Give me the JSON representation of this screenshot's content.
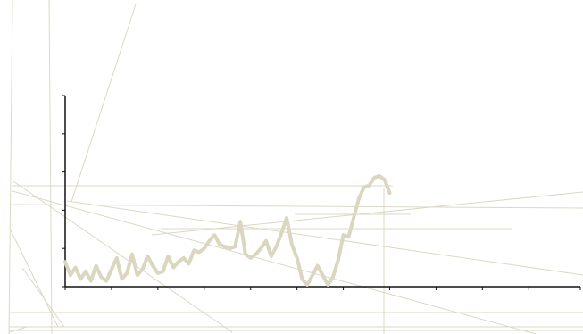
{
  "palette": {
    "background": "#ffffff",
    "series": "#dbd6bf",
    "axis": "#111111",
    "overlay": "#dcd8c6"
  },
  "chart_data": {
    "type": "line",
    "title": "",
    "xlabel": "",
    "ylabel": "",
    "xlim": [
      0,
      100
    ],
    "ylim": [
      0,
      5
    ],
    "x_ticks": [
      0,
      9,
      18,
      27,
      36,
      45,
      54,
      63,
      72,
      81,
      90,
      100
    ],
    "y_ticks": [
      0,
      1,
      2,
      3,
      4,
      5
    ],
    "grid": false,
    "legend": "none",
    "series": [
      {
        "x": [
          0,
          1,
          2,
          3,
          4,
          5,
          6,
          7,
          8,
          9,
          10,
          11,
          12,
          13,
          14,
          15,
          16,
          17,
          18,
          19,
          20,
          21,
          22,
          23,
          24,
          25,
          26,
          27,
          28,
          29,
          30,
          31,
          32,
          33,
          34,
          35,
          36,
          37,
          38,
          39,
          40,
          41,
          42,
          43,
          44,
          45,
          46,
          47,
          48,
          49,
          50,
          51,
          52,
          53,
          54,
          55,
          56,
          57,
          58,
          59,
          60,
          61,
          62,
          63
        ],
        "values": [
          0.65,
          0.3,
          0.5,
          0.2,
          0.4,
          0.15,
          0.55,
          0.25,
          0.15,
          0.45,
          0.75,
          0.2,
          0.35,
          0.85,
          0.3,
          0.45,
          0.8,
          0.55,
          0.35,
          0.4,
          0.8,
          0.5,
          0.65,
          0.75,
          0.6,
          0.95,
          0.9,
          1.0,
          1.2,
          1.35,
          1.1,
          1.05,
          1.0,
          1.05,
          1.7,
          0.85,
          0.75,
          0.85,
          1.0,
          1.2,
          0.8,
          1.05,
          1.4,
          1.8,
          1.1,
          0.75,
          0.2,
          0.05,
          0.3,
          0.55,
          0.3,
          0.05,
          0.25,
          0.7,
          1.35,
          1.3,
          1.8,
          2.3,
          2.6,
          2.65,
          2.85,
          2.9,
          2.8,
          2.45
        ]
      }
    ]
  }
}
